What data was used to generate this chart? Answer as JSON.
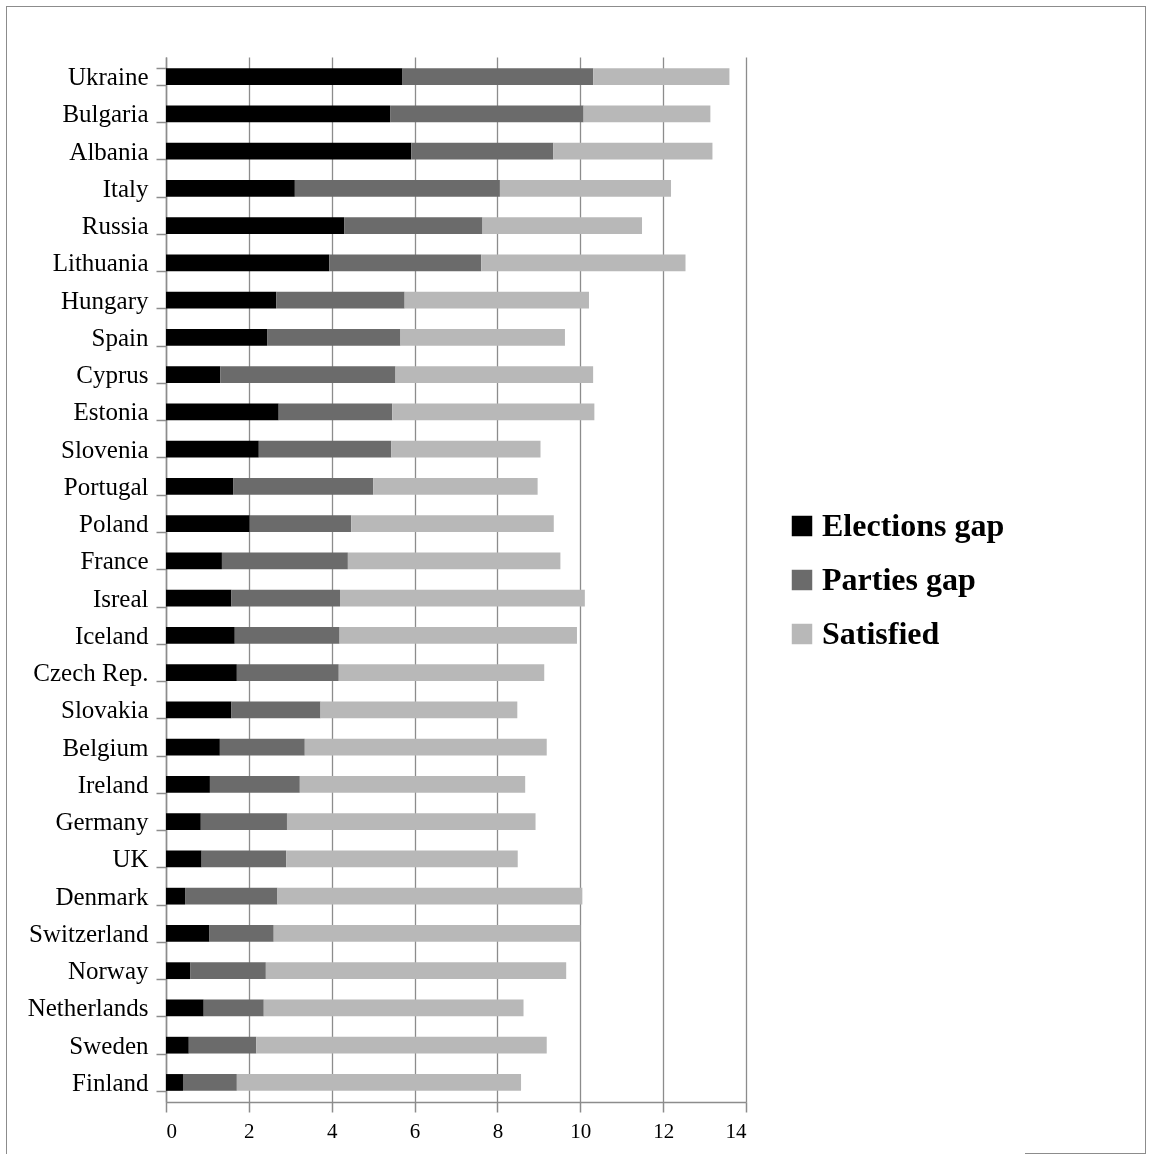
{
  "chart_data": {
    "type": "bar",
    "orientation": "horizontal",
    "stacked": true,
    "categories": [
      "Ukraine",
      "Bulgaria",
      "Albania",
      "Italy",
      "Russia",
      "Lithuania",
      "Hungary",
      "Spain",
      "Cyprus",
      "Estonia",
      "Slovenia",
      "Portugal",
      "Poland",
      "France",
      "Isreal",
      "Iceland",
      "Czech Rep.",
      "Slovakia",
      "Belgium",
      "Ireland",
      "Germany",
      "UK",
      "Denmark",
      "Switzerland",
      "Norway",
      "Netherlands",
      "Sweden",
      "Finland"
    ],
    "series": [
      {
        "name": "Elections gap",
        "color": "#000000",
        "values": [
          5.71,
          5.41,
          5.92,
          3.11,
          4.3,
          3.94,
          2.66,
          2.44,
          1.31,
          2.72,
          2.24,
          1.62,
          2.02,
          1.35,
          1.58,
          1.66,
          1.71,
          1.58,
          1.3,
          1.06,
          0.84,
          0.86,
          0.46,
          1.05,
          0.59,
          0.91,
          0.55,
          0.41
        ]
      },
      {
        "name": "Parties gap",
        "color": "#6b6b6b",
        "values": [
          4.6,
          4.67,
          3.43,
          4.95,
          3.34,
          3.67,
          3.1,
          3.22,
          4.23,
          2.74,
          3.2,
          3.38,
          2.45,
          3.04,
          2.62,
          2.53,
          2.46,
          2.15,
          2.05,
          2.17,
          2.08,
          2.04,
          2.23,
          1.55,
          1.82,
          1.45,
          1.63,
          1.3
        ]
      },
      {
        "name": "Satisfied",
        "color": "#b8b8b8",
        "values": [
          3.29,
          3.06,
          3.84,
          4.13,
          3.85,
          4.93,
          4.45,
          3.97,
          4.77,
          4.88,
          3.6,
          3.97,
          4.89,
          5.13,
          5.91,
          5.73,
          4.96,
          4.75,
          5.84,
          5.44,
          6.0,
          5.59,
          7.36,
          7.4,
          7.25,
          6.27,
          7.01,
          6.86
        ]
      }
    ],
    "xlim": [
      0,
      14
    ],
    "xticks": [
      0,
      2,
      4,
      6,
      8,
      10,
      12,
      14
    ],
    "grid": "x",
    "legend": "right"
  }
}
